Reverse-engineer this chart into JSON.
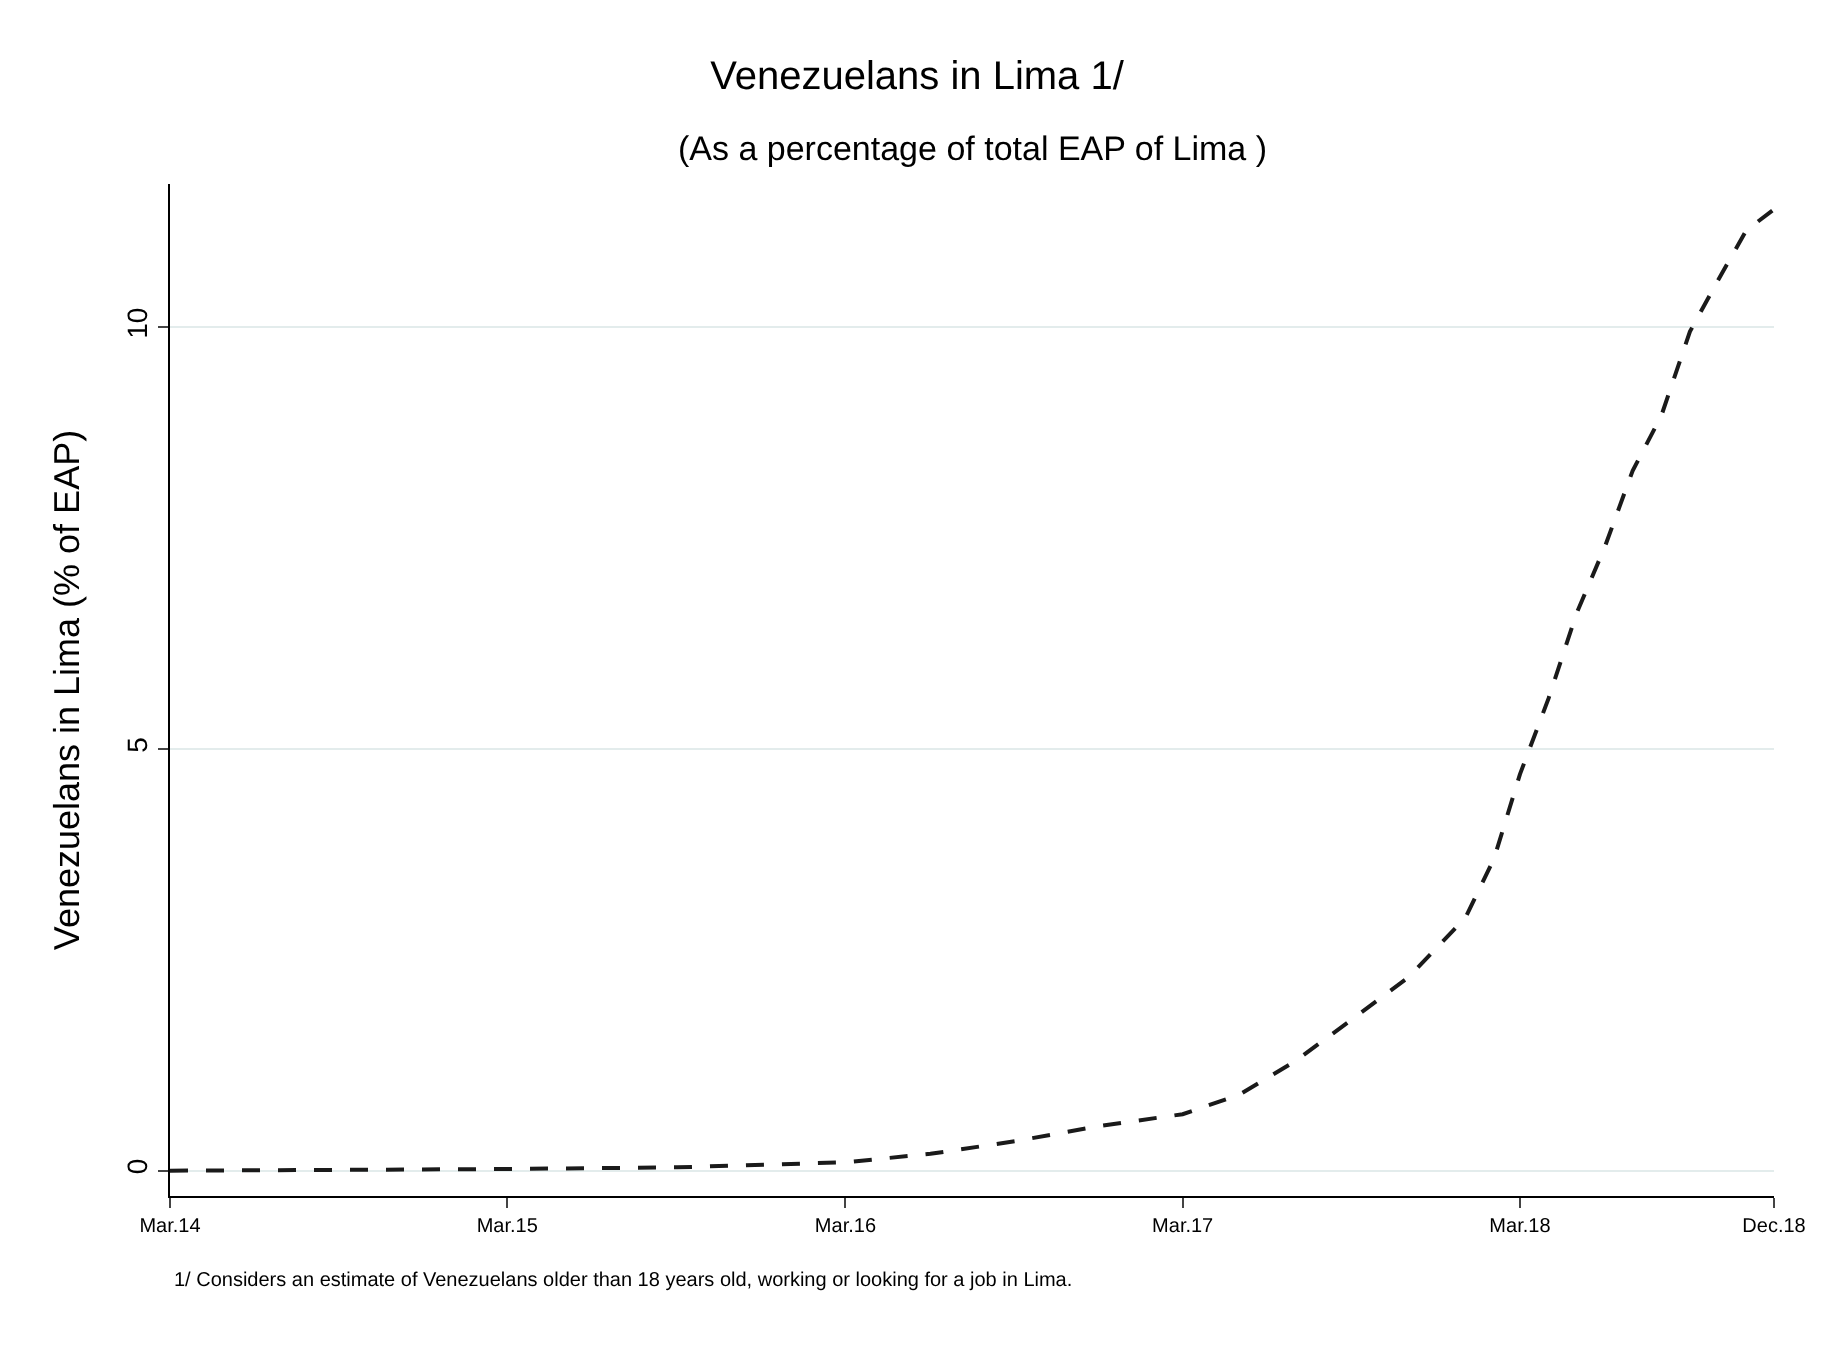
{
  "chart_data": {
    "type": "line",
    "title": "Venezuelans in Lima 1/",
    "subtitle": "(As a percentage of total EAP of Lima )",
    "ylabel": "Venezuelans in Lima (% of EAP)",
    "annotations": [
      "1/ Considers an estimate of Venezuelans older than 18 years old, working or looking for a job in Lima."
    ],
    "x": [
      "2014-03",
      "2014-09",
      "2015-03",
      "2015-09",
      "2016-03",
      "2016-06",
      "2016-09",
      "2016-12",
      "2017-03",
      "2017-05",
      "2017-07",
      "2017-09",
      "2017-11",
      "2018-01",
      "2018-02",
      "2018-03",
      "2018-04",
      "2018-05",
      "2018-06",
      "2018-07",
      "2018-08",
      "2018-09",
      "2018-10",
      "2018-11",
      "2018-12"
    ],
    "series": [
      {
        "color": "#1a1a1a",
        "values": [
          0,
          0.01,
          0.02,
          0.04,
          0.1,
          0.2,
          0.35,
          0.53,
          0.67,
          0.9,
          1.3,
          1.8,
          2.3,
          3.0,
          3.7,
          4.7,
          5.6,
          6.6,
          7.4,
          8.3,
          8.95,
          9.95,
          10.55,
          11.15,
          11.4
        ]
      }
    ],
    "xlim": [
      "2014-03",
      "2018-12"
    ],
    "xticks": [
      {
        "value": "2014-03",
        "label": "Mar.14"
      },
      {
        "value": "2015-03",
        "label": "Mar.15"
      },
      {
        "value": "2016-03",
        "label": "Mar.16"
      },
      {
        "value": "2017-03",
        "label": "Mar.17"
      },
      {
        "value": "2018-03",
        "label": "Mar.18"
      },
      {
        "value": "2018-12",
        "label": "Dec.18"
      }
    ],
    "ylim": [
      -0.3,
      11.7
    ],
    "yticks": [
      0,
      5,
      10
    ],
    "grid": "y",
    "marker": "none",
    "line_style": "dashed"
  }
}
